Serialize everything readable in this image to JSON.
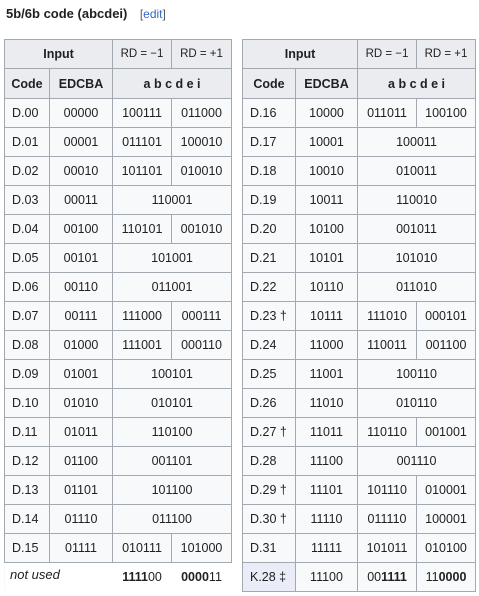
{
  "heading": {
    "title": "5b/6b code (abcdei)",
    "edit_open": "[",
    "edit_label": "edit",
    "edit_close": "]"
  },
  "headers": {
    "input": "Input",
    "rd_neg": "RD = −1",
    "rd_pos": "RD = +1",
    "code": "Code",
    "edcba": "EDCBA",
    "abcdei": "a b c d e i"
  },
  "left_rows": [
    {
      "code": "D.00",
      "edcba": "00000",
      "neg": "100111",
      "pos": "011000"
    },
    {
      "code": "D.01",
      "edcba": "00001",
      "neg": "011101",
      "pos": "100010"
    },
    {
      "code": "D.02",
      "edcba": "00010",
      "neg": "101101",
      "pos": "010010"
    },
    {
      "code": "D.03",
      "edcba": "00011",
      "both": "110001"
    },
    {
      "code": "D.04",
      "edcba": "00100",
      "neg": "110101",
      "pos": "001010"
    },
    {
      "code": "D.05",
      "edcba": "00101",
      "both": "101001"
    },
    {
      "code": "D.06",
      "edcba": "00110",
      "both": "011001"
    },
    {
      "code": "D.07",
      "edcba": "00111",
      "neg": "111000",
      "pos": "000111"
    },
    {
      "code": "D.08",
      "edcba": "01000",
      "neg": "111001",
      "pos": "000110"
    },
    {
      "code": "D.09",
      "edcba": "01001",
      "both": "100101"
    },
    {
      "code": "D.10",
      "edcba": "01010",
      "both": "010101"
    },
    {
      "code": "D.11",
      "edcba": "01011",
      "both": "110100"
    },
    {
      "code": "D.12",
      "edcba": "01100",
      "both": "001101"
    },
    {
      "code": "D.13",
      "edcba": "01101",
      "both": "101100"
    },
    {
      "code": "D.14",
      "edcba": "01110",
      "both": "011100"
    },
    {
      "code": "D.15",
      "edcba": "01111",
      "neg": "010111",
      "pos": "101000"
    }
  ],
  "right_rows": [
    {
      "code": "D.16",
      "edcba": "10000",
      "neg": "011011",
      "pos": "100100"
    },
    {
      "code": "D.17",
      "edcba": "10001",
      "both": "100011"
    },
    {
      "code": "D.18",
      "edcba": "10010",
      "both": "010011"
    },
    {
      "code": "D.19",
      "edcba": "10011",
      "both": "110010"
    },
    {
      "code": "D.20",
      "edcba": "10100",
      "both": "001011"
    },
    {
      "code": "D.21",
      "edcba": "10101",
      "both": "101010"
    },
    {
      "code": "D.22",
      "edcba": "10110",
      "both": "011010"
    },
    {
      "code": "D.23 †",
      "edcba": "10111",
      "neg": "111010",
      "pos": "000101"
    },
    {
      "code": "D.24",
      "edcba": "11000",
      "neg": "110011",
      "pos": "001100"
    },
    {
      "code": "D.25",
      "edcba": "11001",
      "both": "100110"
    },
    {
      "code": "D.26",
      "edcba": "11010",
      "both": "010110"
    },
    {
      "code": "D.27 †",
      "edcba": "11011",
      "neg": "110110",
      "pos": "001001"
    },
    {
      "code": "D.28",
      "edcba": "11100",
      "both": "001110"
    },
    {
      "code": "D.29 †",
      "edcba": "11101",
      "neg": "101110",
      "pos": "010001"
    },
    {
      "code": "D.30 †",
      "edcba": "11110",
      "neg": "011110",
      "pos": "100001"
    },
    {
      "code": "D.31",
      "edcba": "11111",
      "neg": "101011",
      "pos": "010100"
    }
  ],
  "not_used": {
    "label": "not used",
    "neg_bold": "1111",
    "neg_rest": "00",
    "pos_bold": "0000",
    "pos_rest": "11"
  },
  "k28": {
    "code": "K.28 ‡",
    "edcba": "11100",
    "neg_pre": "00",
    "neg_bold": "1111",
    "pos_pre": "11",
    "pos_bold": "0000"
  }
}
